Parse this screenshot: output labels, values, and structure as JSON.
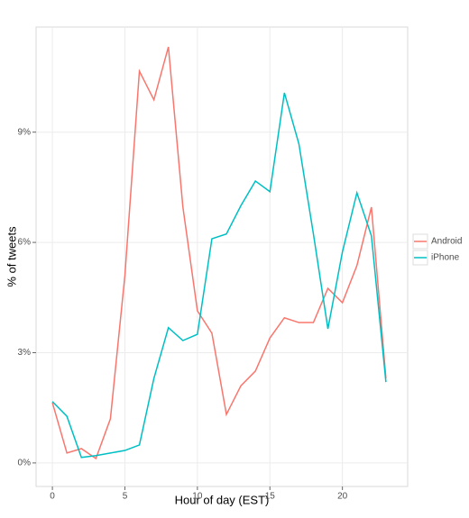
{
  "chart_data": {
    "type": "line",
    "x_label": "Hour of day (EST)",
    "y_label": "% of tweets",
    "x": [
      0,
      1,
      2,
      3,
      4,
      5,
      6,
      7,
      8,
      9,
      10,
      11,
      12,
      13,
      14,
      15,
      16,
      17,
      18,
      19,
      20,
      21,
      22,
      23
    ],
    "series": [
      {
        "name": "Android",
        "color": "#F8766D",
        "values": [
          1.64,
          0.27,
          0.39,
          0.12,
          1.2,
          5.1,
          10.66,
          9.88,
          11.32,
          6.96,
          4.14,
          3.53,
          1.32,
          2.1,
          2.5,
          3.4,
          3.95,
          3.82,
          3.82,
          4.75,
          4.36,
          5.37,
          6.96,
          2.3
        ]
      },
      {
        "name": "iPhone",
        "color": "#00BFC4",
        "values": [
          1.67,
          1.27,
          0.15,
          0.2,
          0.27,
          0.34,
          0.49,
          2.3,
          3.68,
          3.33,
          3.5,
          6.1,
          6.23,
          7.0,
          7.67,
          7.38,
          10.07,
          8.68,
          6.23,
          3.65,
          5.74,
          7.35,
          6.18,
          2.2
        ]
      }
    ],
    "xlim": [
      -1.125,
      24.5
    ],
    "xticks": [
      0,
      5,
      10,
      15,
      20
    ],
    "ylim": [
      -0.64,
      11.86
    ],
    "yticks": [
      {
        "value": 0,
        "label": "0%"
      },
      {
        "value": 3,
        "label": "3%"
      },
      {
        "value": 6,
        "label": "6%"
      },
      {
        "value": 9,
        "label": "9%"
      }
    ],
    "grid": true,
    "legend": "right"
  }
}
